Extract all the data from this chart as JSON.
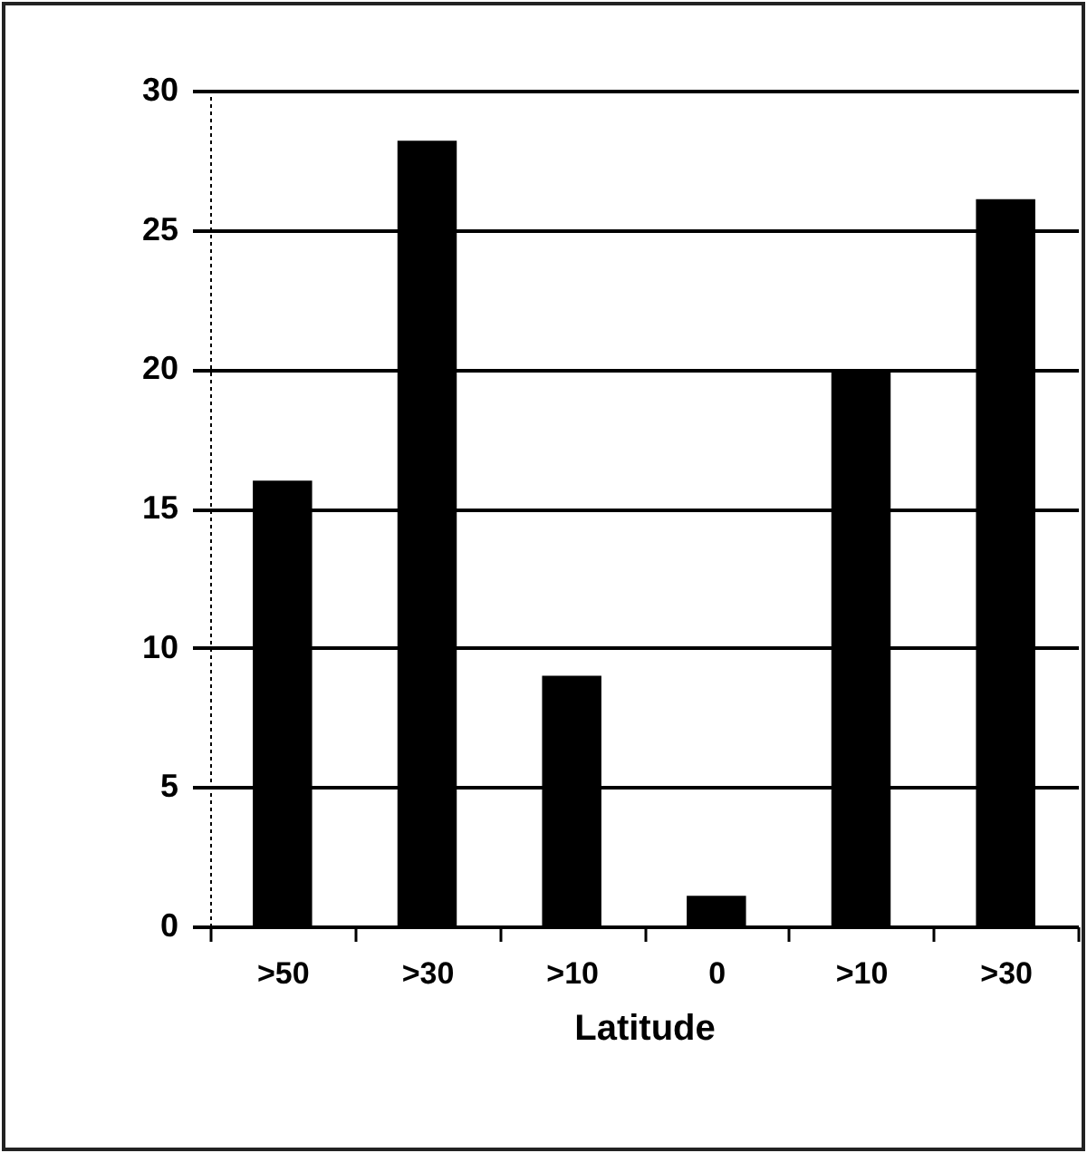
{
  "chart_data": {
    "type": "bar",
    "xlabel": "Latitude",
    "categories": [
      ">50",
      ">30",
      ">10",
      "0",
      ">10",
      ">30"
    ],
    "values": [
      16,
      28.2,
      9,
      1.1,
      20,
      26.1
    ],
    "color": "#000000",
    "ylim": [
      0,
      30
    ],
    "yticks": [
      0,
      5,
      10,
      15,
      20,
      25,
      30
    ],
    "grid": "y"
  }
}
